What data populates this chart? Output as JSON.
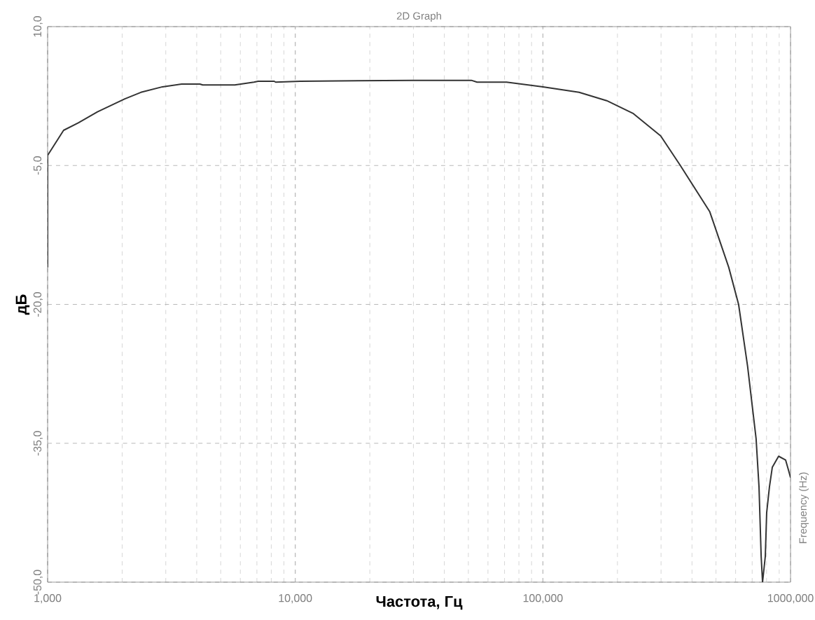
{
  "chart_data": {
    "type": "line",
    "title": "2D Graph",
    "xlabel": "Частота, Гц",
    "ylabel": "дБ",
    "annotations": [
      "Frequency (Hz)"
    ],
    "log": "x",
    "grid": true,
    "xlim": [
      1000,
      1000000
    ],
    "ylim": [
      -50,
      10
    ],
    "xticks": [
      {
        "value": 1000,
        "label": "1,000"
      },
      {
        "value": 10000,
        "label": "10,000"
      },
      {
        "value": 100000,
        "label": "100,000"
      },
      {
        "value": 1000000,
        "label": "1000,000"
      }
    ],
    "yticks": [
      {
        "value": 10,
        "label": "10,0"
      },
      {
        "value": -5,
        "label": "-5,0"
      },
      {
        "value": -20,
        "label": "-20,0"
      },
      {
        "value": -35,
        "label": "-35,0"
      },
      {
        "value": -50,
        "label": "-50,0"
      }
    ],
    "x": [
      1000,
      1000,
      1160,
      1330,
      1590,
      2050,
      2380,
      2910,
      3480,
      4120,
      4230,
      5700,
      6810,
      7080,
      8220,
      8330,
      10500,
      29900,
      51400,
      54200,
      71300,
      100000,
      140000,
      181000,
      232000,
      299000,
      359000,
      472000,
      563000,
      617000,
      671000,
      726000,
      746000,
      761000,
      771000,
      791000,
      801000,
      822000,
      844000,
      895000,
      955000,
      981000,
      1000000
    ],
    "series": [
      {
        "color": "#333333",
        "values": [
          -16,
          -3.9,
          -1.2,
          -0.4,
          0.8,
          2.2,
          2.9,
          3.5,
          3.8,
          3.8,
          3.7,
          3.7,
          4,
          4.1,
          4.1,
          4,
          4.1,
          4.2,
          4.2,
          4,
          4,
          3.5,
          2.9,
          2,
          0.6,
          -1.8,
          -5,
          -10,
          -16,
          -20,
          -26.7,
          -34.5,
          -39.7,
          -47.2,
          -50,
          -47.2,
          -42.5,
          -39.7,
          -37.6,
          -36.4,
          -36.8,
          -37.9,
          -38.7
        ]
      }
    ]
  }
}
